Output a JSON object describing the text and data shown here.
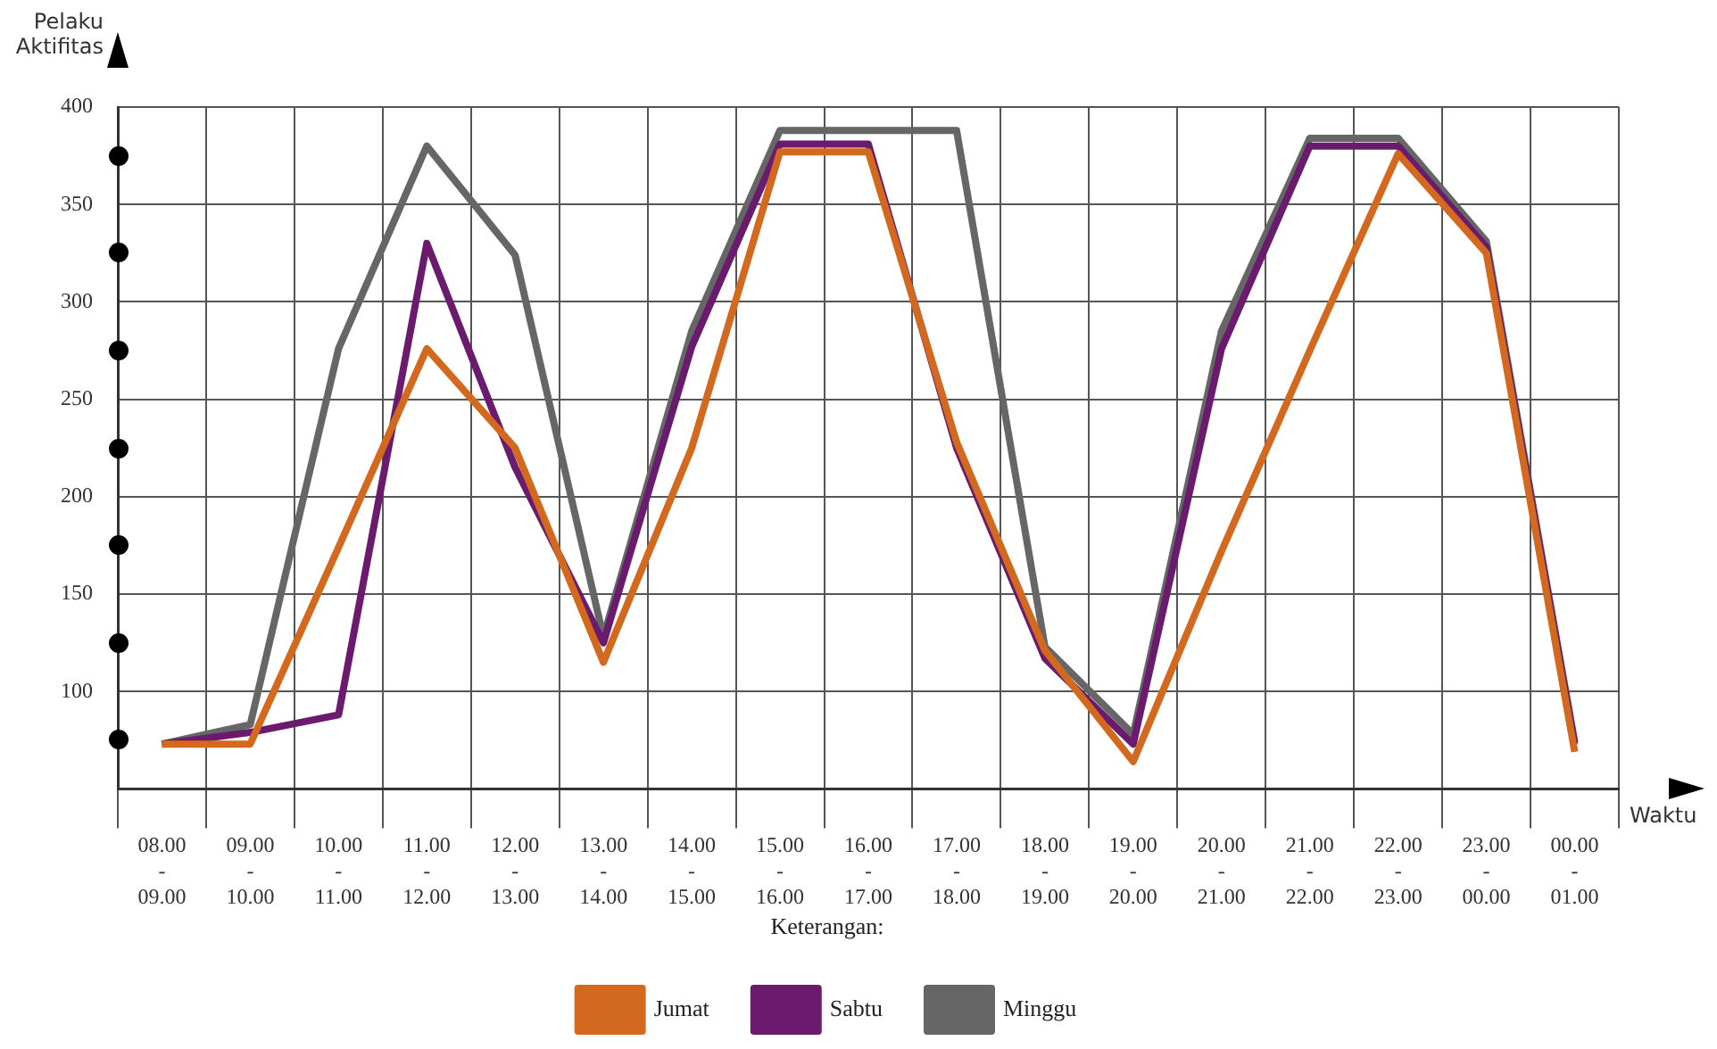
{
  "chart_data": {
    "type": "line",
    "xlabel": "Waktu",
    "ylabel": "Pelaku\nAktifitas",
    "legend_title": "Keterangan:",
    "categories": [
      "08.00\n-\n09.00",
      "09.00\n-\n10.00",
      "10.00\n-\n11.00",
      "11.00\n-\n12.00",
      "12.00\n-\n13.00",
      "13.00\n-\n14.00",
      "14.00\n-\n15.00",
      "15.00\n-\n16.00",
      "16.00\n-\n17.00",
      "17.00\n-\n18.00",
      "18.00\n-\n19.00",
      "19.00\n-\n20.00",
      "20.00\n-\n21.00",
      "21.00\n-\n22.00",
      "22.00\n-\n23.00",
      "23.00\n-\n00.00",
      "00.00\n-\n01.00"
    ],
    "series": [
      {
        "name": "Jumat",
        "color": "#d2691e",
        "values": [
          73,
          73,
          174,
          276,
          225,
          115,
          225,
          377,
          377,
          228,
          121,
          64,
          172,
          275,
          376,
          325,
          69
        ]
      },
      {
        "name": "Sabtu",
        "color": "#6a1b6e",
        "values": [
          73,
          79,
          88,
          330,
          215,
          125,
          277,
          381,
          381,
          225,
          117,
          73,
          276,
          380,
          380,
          328,
          73
        ]
      },
      {
        "name": "Minggu",
        "color": "#666666",
        "values": [
          73,
          83,
          276,
          380,
          324,
          128,
          285,
          388,
          388,
          388,
          123,
          78,
          285,
          384,
          384,
          331,
          74
        ]
      }
    ],
    "ylim": [
      50,
      400
    ],
    "yticks": [
      {
        "value": 50,
        "label": null
      },
      100,
      150,
      200,
      250,
      300,
      350,
      400
    ],
    "grid": true,
    "legend": "bottom",
    "marker": "none",
    "line_style": "solid"
  }
}
